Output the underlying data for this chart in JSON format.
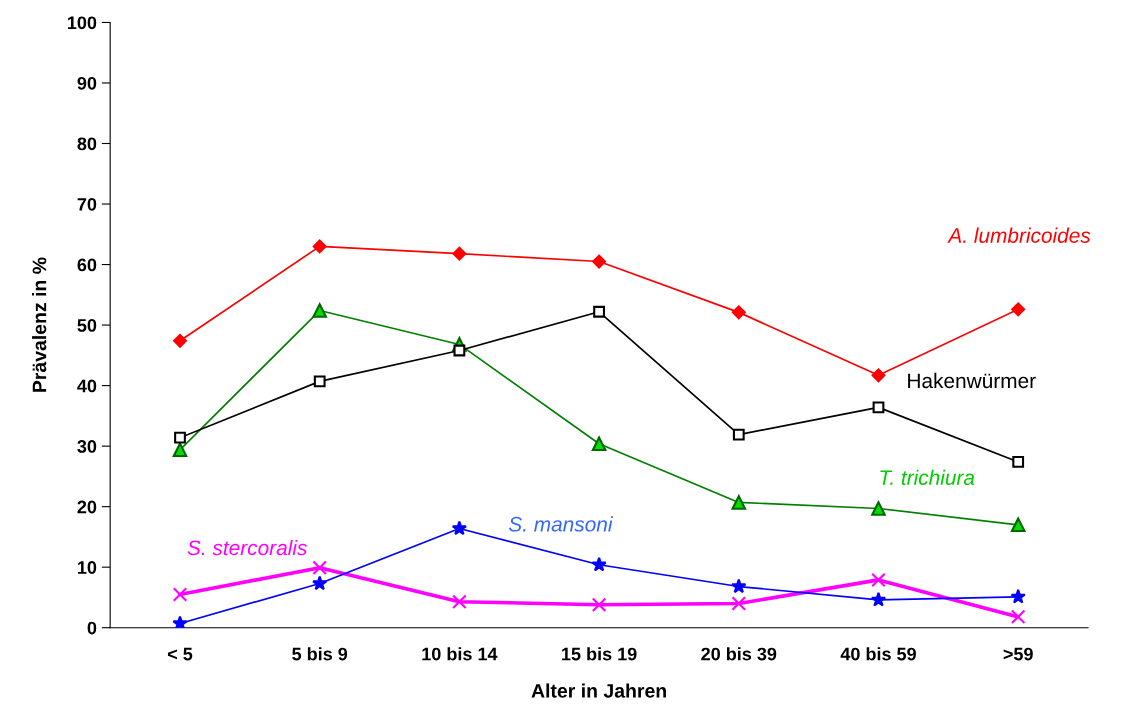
{
  "chart_data": {
    "type": "line",
    "xlabel": "Alter in Jahren",
    "ylabel": "Prävalenz in %",
    "categories": [
      "< 5",
      "5 bis 9",
      "10 bis 14",
      "15 bis 19",
      "20 bis 39",
      "40 bis 59",
      ">59"
    ],
    "ylim": [
      0,
      100
    ],
    "yticks": [
      0,
      10,
      20,
      30,
      40,
      50,
      60,
      70,
      80,
      90,
      100
    ],
    "grid": false,
    "legend": false,
    "series": [
      {
        "name": "A. lumbricoides",
        "color": "#ff0000",
        "marker": "diamond",
        "values": [
          47.4,
          63.0,
          61.8,
          60.5,
          52.1,
          41.7,
          52.6
        ]
      },
      {
        "name": "Hakenwürmer",
        "color": "#000000",
        "marker": "square",
        "values": [
          31.4,
          40.7,
          45.8,
          52.2,
          31.9,
          36.4,
          27.4
        ]
      },
      {
        "name": "T. trichiura",
        "color": "#008000",
        "marker": "triangle",
        "values": [
          29.4,
          52.4,
          46.8,
          30.4,
          20.7,
          19.7,
          17.0
        ]
      },
      {
        "name": "S. mansoni",
        "color": "#0000ff",
        "marker": "star",
        "values": [
          0.7,
          7.3,
          16.4,
          10.4,
          6.8,
          4.6,
          5.1
        ]
      },
      {
        "name": "S. stercoralis",
        "color": "#ff00ff",
        "marker": "cross",
        "values": [
          5.5,
          9.9,
          4.3,
          3.8,
          4.0,
          7.9,
          1.8
        ]
      }
    ]
  }
}
